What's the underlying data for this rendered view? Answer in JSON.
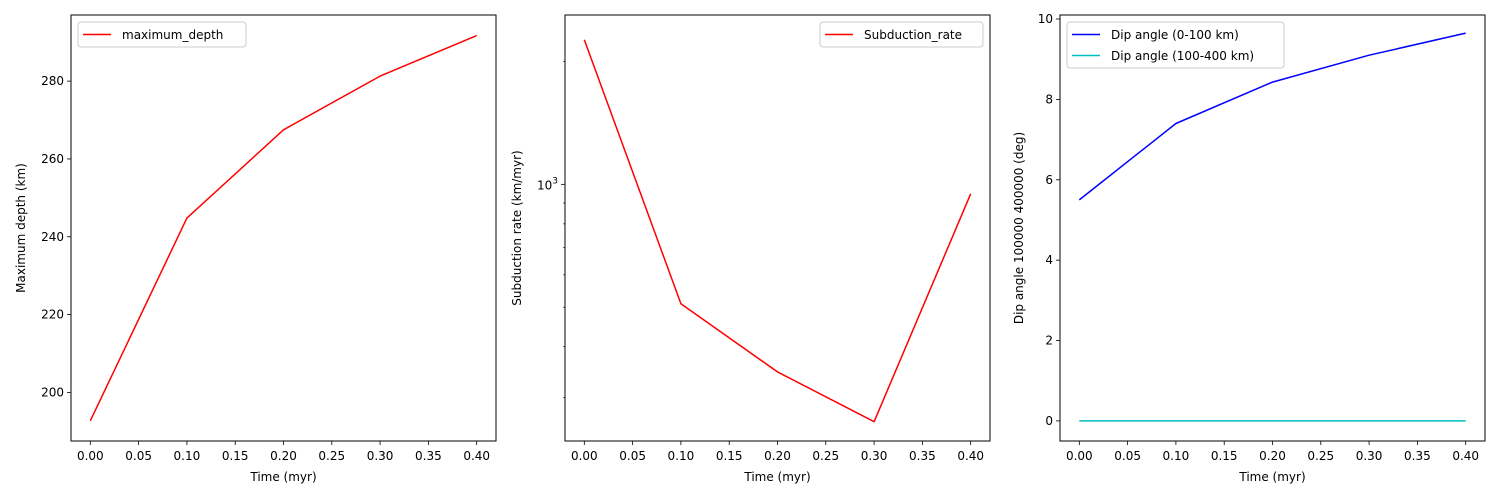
{
  "chart_data": [
    {
      "type": "line",
      "xlabel": "Time (myr)",
      "ylabel": "Maximum depth (km)",
      "xlim": [
        -0.02,
        0.42
      ],
      "ylim": [
        187.5,
        297
      ],
      "yscale": "linear",
      "xticks": [
        0.0,
        0.05,
        0.1,
        0.15,
        0.2,
        0.25,
        0.3,
        0.35,
        0.4
      ],
      "xtick_labels": [
        "0.00",
        "0.05",
        "0.10",
        "0.15",
        "0.20",
        "0.25",
        "0.30",
        "0.35",
        "0.40"
      ],
      "yticks": [
        200,
        220,
        240,
        260,
        280
      ],
      "ytick_labels": [
        "200",
        "220",
        "240",
        "260",
        "280"
      ],
      "legend_position": "upper left",
      "grid": false,
      "series": [
        {
          "name": "maximum_depth",
          "color": "#ff0000",
          "x": [
            0.0,
            0.1,
            0.2,
            0.3,
            0.4
          ],
          "y": [
            192.7,
            244.8,
            267.5,
            281.3,
            291.7
          ]
        }
      ]
    },
    {
      "type": "line",
      "xlabel": "Time (myr)",
      "ylabel": "Subduction rate (km/myr)",
      "xlim": [
        -0.02,
        0.42
      ],
      "ylim": [
        235,
        2600
      ],
      "yscale": "log",
      "xticks": [
        0.0,
        0.05,
        0.1,
        0.15,
        0.2,
        0.25,
        0.3,
        0.35,
        0.4
      ],
      "xtick_labels": [
        "0.00",
        "0.05",
        "0.10",
        "0.15",
        "0.20",
        "0.25",
        "0.30",
        "0.35",
        "0.40"
      ],
      "yticks_major": [
        1000
      ],
      "ytick_major_labels": [
        {
          "base": "10",
          "exp": "3"
        }
      ],
      "yticks_minor": [
        300,
        400,
        500,
        600,
        700,
        800,
        900,
        2000
      ],
      "legend_position": "upper right",
      "grid": false,
      "series": [
        {
          "name": "Subduction_rate",
          "color": "#ff0000",
          "x": [
            0.0,
            0.1,
            0.2,
            0.3,
            0.4
          ],
          "y": [
            2260,
            510,
            347,
            262,
            948
          ]
        }
      ]
    },
    {
      "type": "line",
      "xlabel": "Time (myr)",
      "ylabel": "Dip angle 100000 400000 (deg)",
      "xlim": [
        -0.02,
        0.42
      ],
      "ylim": [
        -0.5,
        10.1
      ],
      "yscale": "linear",
      "xticks": [
        0.0,
        0.05,
        0.1,
        0.15,
        0.2,
        0.25,
        0.3,
        0.35,
        0.4
      ],
      "xtick_labels": [
        "0.00",
        "0.05",
        "0.10",
        "0.15",
        "0.20",
        "0.25",
        "0.30",
        "0.35",
        "0.40"
      ],
      "yticks": [
        0,
        2,
        4,
        6,
        8,
        10
      ],
      "ytick_labels": [
        "0",
        "2",
        "4",
        "6",
        "8",
        "10"
      ],
      "legend_position": "upper left",
      "grid": false,
      "series": [
        {
          "name": "Dip angle (0-100 km)",
          "color": "#0000ff",
          "x": [
            0.0,
            0.1,
            0.2,
            0.3,
            0.4
          ],
          "y": [
            5.5,
            7.4,
            8.43,
            9.1,
            9.65
          ]
        },
        {
          "name": "Dip angle (100-400 km)",
          "color": "#00bfbf",
          "x": [
            0.0,
            0.1,
            0.2,
            0.3,
            0.4
          ],
          "y": [
            0,
            0,
            0,
            0,
            0
          ]
        }
      ]
    }
  ]
}
